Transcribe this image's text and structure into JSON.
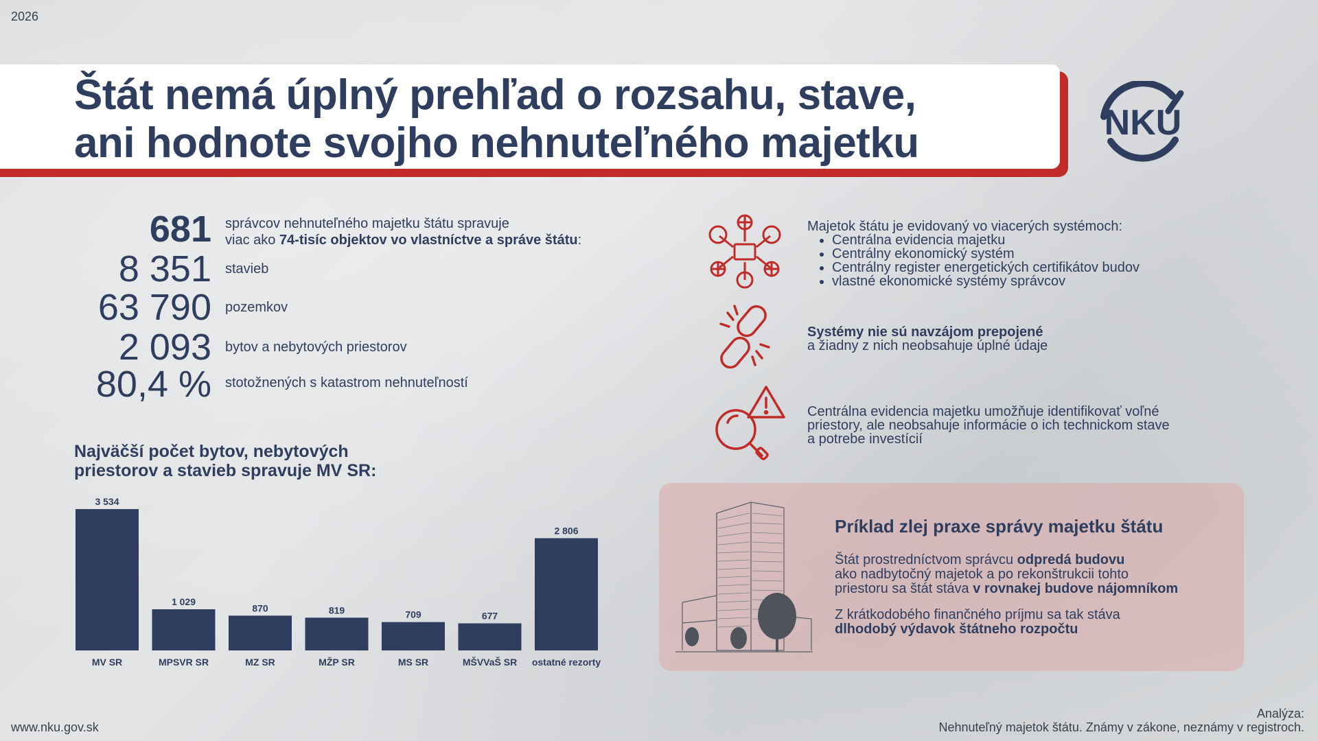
{
  "year": "2026",
  "title_line1": "Štát nemá úplný prehľad o rozsahu, stave,",
  "title_line2": "ani hodnote svojho nehnuteľného majetku",
  "logo_text": "NKU",
  "stats": [
    {
      "value": "681",
      "text_plain": "správcov nehnuteľného majetku štátu spravuje",
      "text_line2_pre": "viac ako ",
      "text_line2_bold": "74-tisíc objektov vo vlastníctve a správe štátu",
      "text_line2_post": ":"
    },
    {
      "value": "8 351",
      "text": "stavieb"
    },
    {
      "value": "63 790",
      "text": "pozemkov"
    },
    {
      "value": "2 093",
      "text": "bytov a nebytových priestorov"
    },
    {
      "value": "80,4 %",
      "text": "stotožnených s katastrom nehnuteľností"
    }
  ],
  "chart_title_line1": "Najväčší počet bytov, nebytových",
  "chart_title_line2": "priestorov a stavieb spravuje MV SR:",
  "chart_data": {
    "type": "bar",
    "categories": [
      "MV SR",
      "MPSVR SR",
      "MZ SR",
      "MŽP SR",
      "MS SR",
      "MŠVVaŠ SR",
      "ostatné rezorty"
    ],
    "values": [
      3534,
      1029,
      870,
      819,
      709,
      677,
      2806
    ],
    "value_labels": [
      "3 534",
      "1 029",
      "870",
      "819",
      "709",
      "677",
      "2 806"
    ],
    "title": "Najväčší počet bytov, nebytových priestorov a stavieb spravuje MV SR:",
    "ylim": [
      0,
      3534
    ],
    "grid": false,
    "bar_color": "#2f3e5e"
  },
  "systems": {
    "intro": "Majetok štátu je evidovaný vo viacerých systémoch:",
    "items": [
      "Centrálna evidencia majetku",
      "Centrálny ekonomický systém",
      "Centrálny register energetických certifikátov budov",
      "vlastné ekonomické systémy správcov"
    ]
  },
  "systems_note_bold": "Systémy nie sú navzájom prepojené",
  "systems_note_rest": "a žiadny z nich neobsahuje úplné údaje",
  "cem_note": [
    "Centrálna evidencia majetku umožňuje identifikovať voľné",
    "priestory, ale neobsahuje informácie o ich technickom stave",
    "a potrebe investícií"
  ],
  "example": {
    "title": "Príklad zlej praxe správy majetku štátu",
    "p1_a": "Štát prostredníctvom správcu ",
    "p1_b": "odpredá budovu",
    "p1_c": "ako nadbytočný majetok a po rekonštrukcii tohto",
    "p1_d": "priestoru sa štát stáva ",
    "p1_e": "v rovnakej budove nájomníkom",
    "p2_a": "Z krátkodobého finančného príjmu sa tak stáva",
    "p2_b": "dlhodobý výdavok štátneho rozpočtu"
  },
  "footer_left": "www.nku.gov.sk",
  "footer_right_1": "Analýza:",
  "footer_right_2": "Nehnuteľný majetok štátu. Známy v zákone, neznámy v registroch.",
  "colors": {
    "navy": "#2f3e5e",
    "red": "#c02a27",
    "pink_panel": "#e8b4b4"
  }
}
